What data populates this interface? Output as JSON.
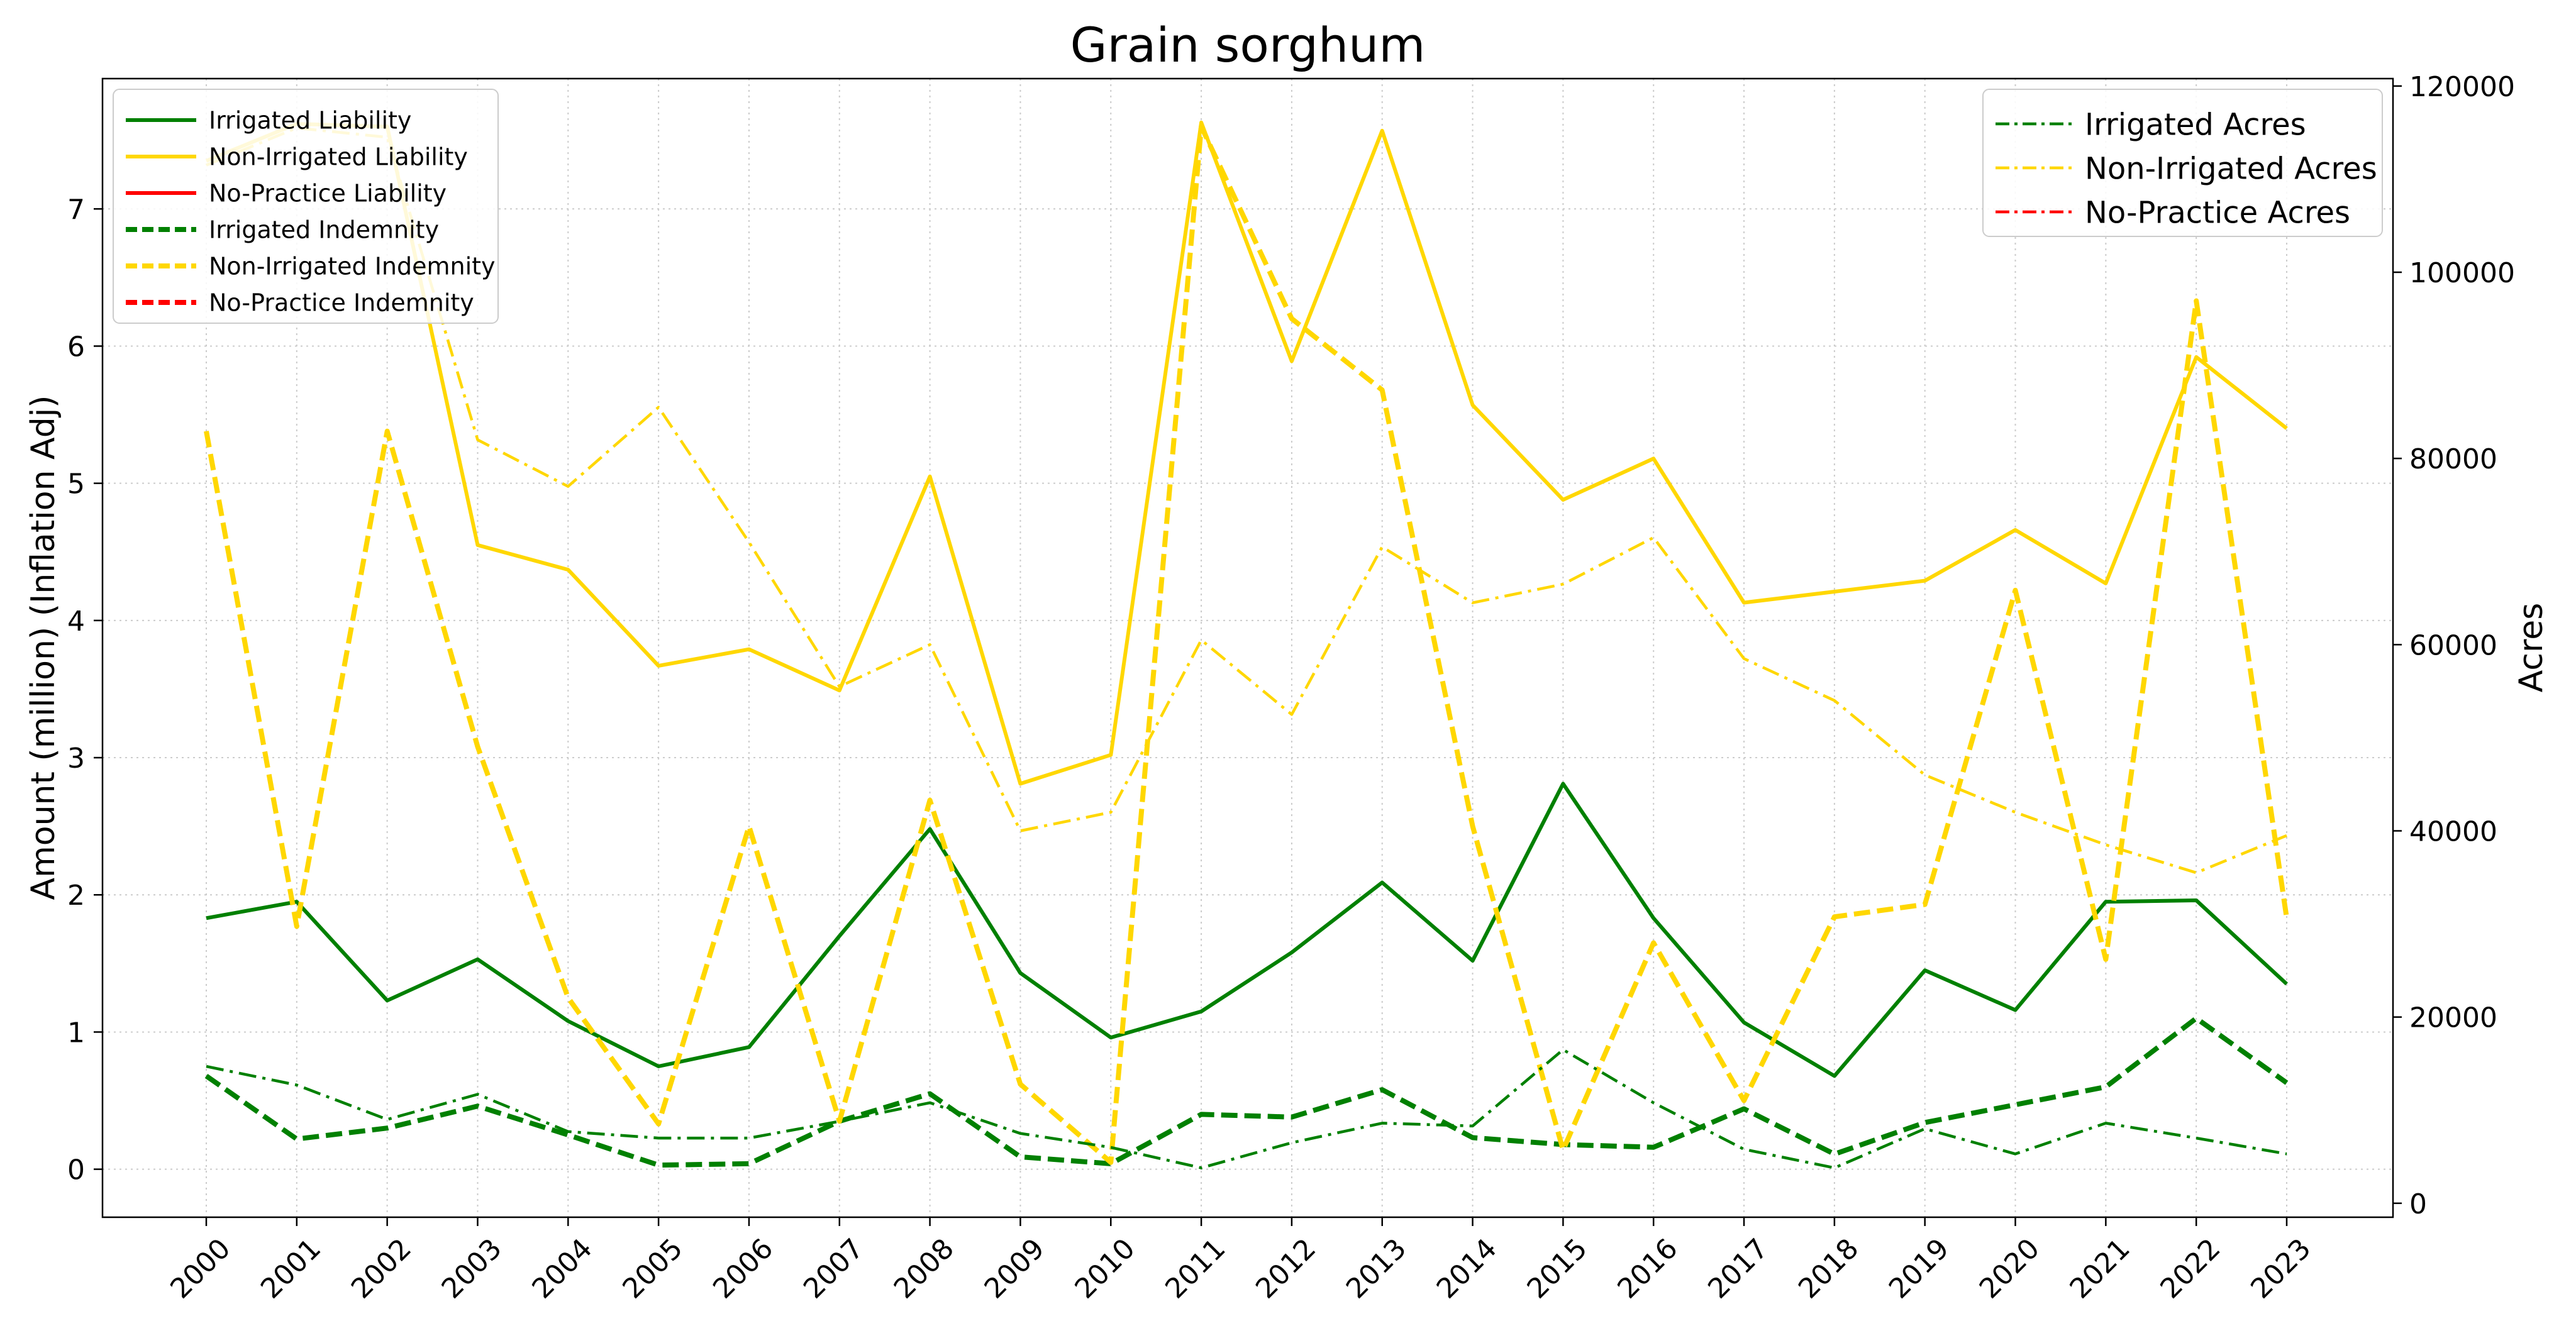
{
  "chart_data": {
    "type": "line",
    "title": "Grain sorghum",
    "ylabel": "Amount (million) (Inflation Adj)",
    "y2label": "Acres",
    "ylim": [
      -0.35,
      7.95
    ],
    "y2lim": [
      -1500,
      120800
    ],
    "yticks": [
      "0",
      "1",
      "2",
      "3",
      "4",
      "5",
      "6",
      "7"
    ],
    "y2ticks": [
      "0",
      "20000",
      "40000",
      "60000",
      "80000",
      "100000",
      "120000"
    ],
    "grid": true,
    "x": [
      "2000",
      "2001",
      "2002",
      "2003",
      "2004",
      "2005",
      "2006",
      "2007",
      "2008",
      "2009",
      "2010",
      "2011",
      "2012",
      "2013",
      "2014",
      "2015",
      "2016",
      "2017",
      "2018",
      "2019",
      "2020",
      "2021",
      "2022",
      "2023"
    ],
    "colors": {
      "irrigated": "#008000",
      "non_irrigated": "#FFD700",
      "no_practice": "#FF0000"
    },
    "legend_left": {
      "position": "top-left",
      "entries": [
        {
          "label": "Irrigated Liability",
          "color": "#008000",
          "style": "solid"
        },
        {
          "label": "Non-Irrigated Liability",
          "color": "#FFD700",
          "style": "solid"
        },
        {
          "label": "No-Practice Liability",
          "color": "#FF0000",
          "style": "solid"
        },
        {
          "label": "Irrigated Indemnity",
          "color": "#008000",
          "style": "dashed"
        },
        {
          "label": "Non-Irrigated Indemnity",
          "color": "#FFD700",
          "style": "dashed"
        },
        {
          "label": "No-Practice Indemnity",
          "color": "#FF0000",
          "style": "dashed"
        }
      ]
    },
    "legend_right": {
      "position": "top-right",
      "entries": [
        {
          "label": "Irrigated Acres",
          "color": "#008000",
          "style": "dashdot"
        },
        {
          "label": "Non-Irrigated Acres",
          "color": "#FFD700",
          "style": "dashdot"
        },
        {
          "label": "No-Practice Acres",
          "color": "#FF0000",
          "style": "dashdot"
        }
      ]
    },
    "series": [
      {
        "name": "Irrigated Liability",
        "axis": "left",
        "color": "#008000",
        "style": "solid",
        "values": [
          1.83,
          1.95,
          1.23,
          1.53,
          1.08,
          0.75,
          0.89,
          1.7,
          2.48,
          1.43,
          0.96,
          1.15,
          1.58,
          2.09,
          1.52,
          2.81,
          1.83,
          1.07,
          0.68,
          1.45,
          1.16,
          1.95,
          1.96,
          1.35
        ]
      },
      {
        "name": "Non-Irrigated Liability",
        "axis": "left",
        "color": "#FFD700",
        "style": "solid",
        "values": [
          7.35,
          7.62,
          7.6,
          4.55,
          4.37,
          3.67,
          3.79,
          3.49,
          5.05,
          2.81,
          3.02,
          7.63,
          5.89,
          7.57,
          5.57,
          4.88,
          5.18,
          4.13,
          4.21,
          4.29,
          4.66,
          4.27,
          5.92,
          5.4
        ]
      },
      {
        "name": "Irrigated Indemnity",
        "axis": "left",
        "color": "#008000",
        "style": "dashed",
        "values": [
          0.68,
          0.22,
          0.3,
          0.46,
          0.25,
          0.03,
          0.04,
          0.35,
          0.55,
          0.09,
          0.04,
          0.4,
          0.38,
          0.58,
          0.23,
          0.18,
          0.16,
          0.44,
          0.11,
          0.34,
          0.47,
          0.6,
          1.1,
          0.63
        ]
      },
      {
        "name": "Non-Irrigated Indemnity",
        "axis": "left",
        "color": "#FFD700",
        "style": "dashed",
        "values": [
          5.38,
          1.77,
          5.38,
          3.08,
          1.25,
          0.33,
          2.5,
          0.35,
          2.69,
          0.62,
          0.05,
          7.6,
          6.2,
          5.68,
          2.5,
          0.14,
          1.65,
          0.5,
          1.84,
          1.93,
          4.22,
          1.53,
          6.33,
          1.83
        ]
      },
      {
        "name": "Irrigated Acres",
        "axis": "right",
        "color": "#008000",
        "style": "dashdot",
        "values": [
          14700,
          12700,
          9000,
          11700,
          7700,
          7000,
          7000,
          8800,
          10800,
          7500,
          6000,
          3800,
          6500,
          8600,
          8300,
          16500,
          10800,
          5800,
          3800,
          8000,
          5300,
          8600,
          7000,
          5300
        ]
      },
      {
        "name": "Non-Irrigated Acres",
        "axis": "right",
        "color": "#FFD700",
        "style": "dashdot",
        "values": [
          111500,
          115500,
          114500,
          82000,
          77000,
          85500,
          71000,
          55500,
          60000,
          40000,
          42000,
          60500,
          52500,
          70500,
          64500,
          66500,
          71500,
          58500,
          54000,
          46000,
          42000,
          38500,
          35500,
          39500
        ]
      }
    ]
  }
}
